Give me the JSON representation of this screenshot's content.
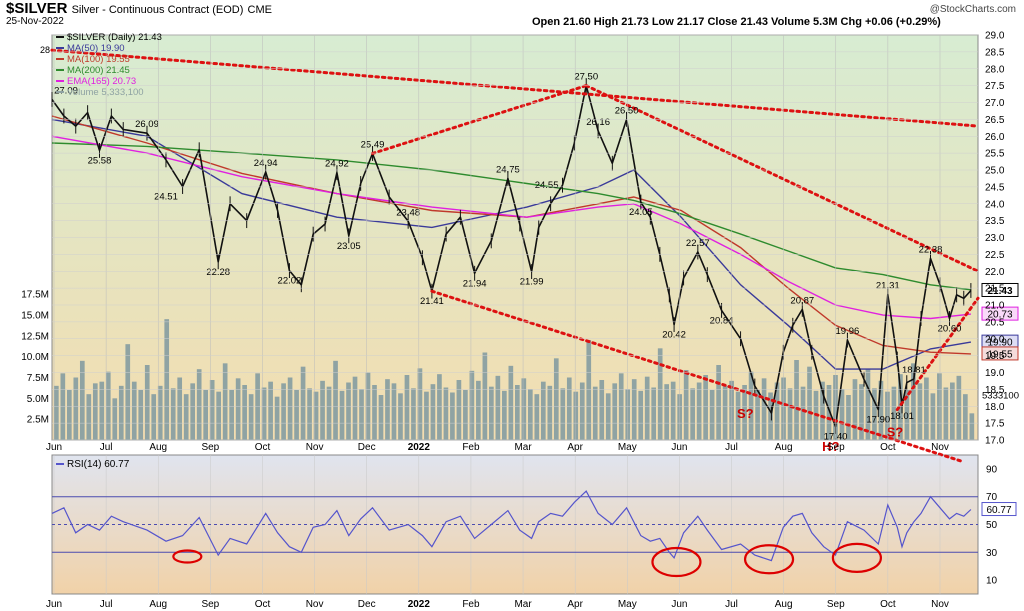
{
  "header": {
    "symbol": "$SILVER",
    "name": "Silver - Continuous Contract (EOD)",
    "exchange": "CME",
    "date": "25-Nov-2022",
    "ohlc_line": "Open 21.60  High 21.73  Low 21.17  Close 21.43  Volume 5.3M  Chg +0.06 (+0.29%)",
    "credit": "@StockCharts.com"
  },
  "legend": {
    "price": "$SILVER (Daily) 21.43",
    "ma50": "MA(50) 19.90",
    "ma100": "MA(100) 19.55",
    "ma200": "MA(200) 21.45",
    "ema165": "EMA(165) 20.73",
    "volume": "Volume 5,333,100",
    "rsi": "RSI(14) 60.77"
  },
  "colors": {
    "panel_bg_top": "#d7ecd2",
    "panel_bg_bottom": "#f3ddb0",
    "rsi_bg_top": "#e0e4ef",
    "rsi_bg_bottom": "#f1d2a8",
    "price": "#111111",
    "ma50": "#3a3a9a",
    "ma100": "#c0392b",
    "ma200": "#2e8b2e",
    "ema165": "#e020e0",
    "volume": "#8fa3a3",
    "trendline": "#dd1111",
    "rsi": "#5555cc",
    "annotation": "#cc0000"
  },
  "chart_data": {
    "type": "line",
    "title": "$SILVER Silver - Continuous Contract (EOD)",
    "price_axis": {
      "min": 17.0,
      "max": 29.0,
      "ticks": [
        "29.0",
        "28.5",
        "28.0",
        "27.5",
        "27.0",
        "26.5",
        "26.0",
        "25.5",
        "25.0",
        "24.5",
        "24.0",
        "23.5",
        "23.0",
        "22.5",
        "22.0",
        "21.5",
        "21.0",
        "20.5",
        "20.0",
        "19.5",
        "19.0",
        "18.5",
        "18.0",
        "17.5",
        "17.0"
      ]
    },
    "volume_axis": {
      "min": 0,
      "max": 17500000,
      "ticks": [
        "17.5M",
        "15.0M",
        "12.5M",
        "10.0M",
        "7.5M",
        "5.0M",
        "2.5M"
      ],
      "tick_values": [
        17.5,
        15,
        12.5,
        10,
        7.5,
        5,
        2.5
      ]
    },
    "rsi_axis": {
      "min": 0,
      "max": 100,
      "ticks": [
        90,
        70,
        50,
        30,
        10
      ],
      "reference_lines": [
        70,
        50,
        30
      ]
    },
    "x_labels": [
      "Jun",
      "Jul",
      "Aug",
      "Sep",
      "Oct",
      "Nov",
      "Dec",
      "2022",
      "Feb",
      "Mar",
      "Apr",
      "May",
      "Jun",
      "Jul",
      "Aug",
      "Sep",
      "Oct",
      "Nov"
    ],
    "x_bold": [
      false,
      false,
      false,
      false,
      false,
      false,
      false,
      true,
      false,
      false,
      false,
      false,
      false,
      false,
      false,
      false,
      false,
      false
    ],
    "price_series": {
      "name": "$SILVER (Daily)",
      "x": [
        0,
        5,
        10,
        15,
        20,
        25,
        30,
        40,
        48,
        55,
        62,
        70,
        75,
        82,
        90,
        95,
        100,
        105,
        110,
        115,
        120,
        125,
        130,
        135,
        142,
        150,
        156,
        160,
        166,
        172,
        178,
        185,
        192,
        197,
        202,
        205,
        210,
        215,
        220,
        225,
        230,
        236,
        242,
        248,
        252,
        256,
        260,
        262,
        266,
        272,
        276,
        282,
        290,
        296,
        303,
        308,
        312,
        316,
        320,
        325,
        330,
        335,
        342,
        348,
        352,
        356,
        358,
        360,
        363,
        366,
        370,
        374,
        378,
        381,
        384,
        387
      ],
      "y": [
        27.09,
        26.6,
        26.3,
        26.7,
        25.58,
        26.6,
        26.2,
        26.09,
        25.3,
        24.51,
        25.6,
        22.28,
        24.0,
        23.5,
        24.94,
        23.8,
        22.02,
        21.6,
        23.1,
        23.4,
        24.92,
        23.05,
        24.6,
        25.49,
        24.2,
        23.48,
        22.4,
        21.41,
        23.1,
        23.6,
        21.94,
        22.9,
        24.75,
        23.4,
        21.99,
        23.3,
        24.0,
        24.55,
        25.8,
        27.5,
        26.16,
        25.2,
        26.5,
        24.05,
        23.6,
        22.5,
        21.3,
        20.42,
        21.8,
        22.57,
        21.9,
        20.84,
        20.0,
        18.6,
        17.8,
        19.6,
        20.4,
        20.87,
        19.6,
        18.3,
        17.4,
        19.96,
        18.8,
        17.9,
        21.31,
        19.4,
        18.01,
        18.7,
        18.81,
        20.6,
        22.38,
        21.6,
        20.6,
        21.3,
        21.2,
        21.43
      ]
    },
    "ma_series": [
      {
        "name": "MA(50)",
        "color_key": "ma50",
        "x": [
          0,
          40,
          80,
          120,
          160,
          200,
          230,
          245,
          265,
          290,
          310,
          330,
          350,
          370,
          387
        ],
        "y": [
          26.5,
          26.0,
          24.3,
          23.6,
          23.3,
          23.9,
          24.5,
          25.0,
          23.6,
          21.6,
          20.4,
          19.1,
          19.1,
          19.7,
          19.9
        ]
      },
      {
        "name": "MA(100)",
        "color_key": "ma100",
        "x": [
          0,
          40,
          80,
          120,
          160,
          200,
          230,
          245,
          265,
          290,
          310,
          330,
          350,
          370,
          387
        ],
        "y": [
          26.6,
          25.8,
          24.9,
          24.3,
          23.8,
          23.6,
          24.0,
          24.2,
          23.8,
          22.7,
          21.5,
          20.4,
          19.8,
          19.6,
          19.55
        ]
      },
      {
        "name": "MA(200)",
        "color_key": "ma200",
        "x": [
          0,
          40,
          80,
          120,
          160,
          200,
          230,
          245,
          265,
          290,
          310,
          330,
          350,
          370,
          387
        ],
        "y": [
          25.8,
          25.7,
          25.5,
          25.3,
          25.0,
          24.6,
          24.3,
          24.1,
          23.7,
          23.1,
          22.6,
          22.1,
          21.9,
          21.6,
          21.45
        ]
      },
      {
        "name": "EMA(165)",
        "color_key": "ema165",
        "x": [
          0,
          40,
          80,
          120,
          160,
          200,
          230,
          245,
          265,
          290,
          310,
          330,
          350,
          370,
          387
        ],
        "y": [
          26.0,
          25.5,
          24.8,
          24.3,
          23.9,
          23.6,
          23.9,
          24.0,
          23.4,
          22.5,
          21.7,
          21.0,
          20.7,
          20.6,
          20.73
        ]
      }
    ],
    "volume_series": {
      "name": "Volume",
      "values": [
        6.5,
        8.0,
        6.0,
        7.5,
        9.5,
        5.5,
        6.8,
        7.0,
        8.2,
        5.0,
        6.5,
        11.5,
        7.0,
        6.0,
        9.0,
        5.5,
        6.5,
        14.5,
        6.2,
        7.5,
        5.5,
        6.8,
        8.5,
        6.0,
        7.2,
        5.8,
        9.2,
        6.0,
        7.4,
        6.6,
        5.5,
        8.0,
        6.3,
        7.0,
        5.2,
        6.8,
        7.5,
        6.0,
        8.8,
        6.2,
        5.8,
        7.1,
        6.4,
        9.5,
        5.9,
        6.9,
        7.6,
        6.1,
        8.1,
        6.6,
        5.4,
        7.3,
        6.8,
        5.6,
        7.8,
        6.2,
        8.6,
        5.8,
        6.7,
        7.9,
        6.3,
        5.7,
        7.2,
        6.0,
        8.3,
        7.1,
        10.5,
        6.4,
        7.7,
        5.9,
        8.9,
        6.6,
        7.4,
        6.1,
        5.5,
        7.0,
        6.5,
        9.8,
        6.2,
        7.5,
        5.8,
        6.9,
        12.0,
        6.4,
        7.2,
        5.6,
        6.8,
        8.0,
        6.1,
        7.3,
        5.9,
        7.6,
        6.3,
        11.0,
        6.7,
        7.0,
        5.5,
        8.4,
        6.2,
        6.9,
        7.8,
        6.0,
        9.0,
        6.5,
        7.1,
        5.8,
        6.6,
        8.2,
        6.0,
        7.4,
        5.7,
        6.9,
        7.5,
        6.2,
        9.6,
        6.4,
        8.8,
        5.9,
        7.0,
        6.6,
        7.8,
        6.1,
        5.4,
        7.3,
        6.7,
        8.5,
        6.2,
        7.1,
        5.8,
        6.4,
        7.9,
        6.0,
        9.2,
        6.8,
        7.5,
        5.6,
        8.0,
        6.3,
        6.9,
        7.7,
        5.5,
        3.2
      ]
    },
    "rsi_series": {
      "name": "RSI(14)",
      "x": [
        0,
        5,
        10,
        15,
        20,
        25,
        30,
        40,
        48,
        55,
        62,
        70,
        75,
        82,
        90,
        95,
        100,
        105,
        110,
        115,
        120,
        125,
        130,
        135,
        142,
        150,
        156,
        160,
        166,
        172,
        178,
        185,
        192,
        197,
        202,
        205,
        210,
        215,
        220,
        225,
        230,
        236,
        242,
        248,
        252,
        256,
        260,
        262,
        266,
        272,
        276,
        282,
        290,
        296,
        303,
        308,
        312,
        316,
        320,
        325,
        330,
        335,
        342,
        348,
        352,
        356,
        358,
        360,
        363,
        366,
        370,
        374,
        378,
        381,
        384,
        387
      ],
      "y": [
        58,
        62,
        44,
        50,
        46,
        56,
        52,
        46,
        38,
        42,
        55,
        28,
        40,
        36,
        58,
        44,
        34,
        30,
        48,
        50,
        60,
        42,
        54,
        62,
        46,
        50,
        42,
        34,
        52,
        56,
        40,
        50,
        60,
        46,
        40,
        52,
        58,
        56,
        66,
        74,
        58,
        50,
        62,
        42,
        38,
        40,
        30,
        26,
        44,
        56,
        46,
        32,
        36,
        28,
        24,
        48,
        56,
        58,
        44,
        34,
        28,
        52,
        46,
        36,
        64,
        48,
        34,
        44,
        52,
        58,
        70,
        62,
        54,
        58,
        56,
        60.77
      ]
    },
    "trendlines": [
      {
        "from": [
          0,
          28.55
        ],
        "to": [
          390,
          26.3
        ]
      },
      {
        "from": [
          135,
          25.49
        ],
        "to": [
          225,
          27.5
        ]
      },
      {
        "from": [
          225,
          27.5
        ],
        "to": [
          390,
          22.0
        ]
      },
      {
        "from": [
          160,
          21.41
        ],
        "to": [
          384,
          16.35
        ]
      },
      {
        "from": [
          356,
          17.9
        ],
        "to": [
          390,
          21.2
        ]
      }
    ],
    "rsi_circles": [
      {
        "x": 57,
        "y": 27
      },
      {
        "x": 263,
        "y": 23
      },
      {
        "x": 302,
        "y": 25
      },
      {
        "x": 339,
        "y": 26
      }
    ],
    "annotations": [
      {
        "text": "S?",
        "x": 292,
        "y": 17.65
      },
      {
        "text": "S?",
        "x": 355,
        "y": 17.1
      },
      {
        "text": "H?",
        "x": 328,
        "y": 94
      }
    ],
    "peak_labels": [
      {
        "text": "27.09",
        "x": 0,
        "y": 27.09,
        "pos": "above"
      },
      {
        "text": "25.58",
        "x": 20,
        "y": 25.58,
        "pos": "below"
      },
      {
        "text": "26.09",
        "x": 40,
        "y": 26.09,
        "pos": "above"
      },
      {
        "text": "24.51",
        "x": 48,
        "y": 24.51,
        "pos": "below"
      },
      {
        "text": "22.28",
        "x": 70,
        "y": 22.28,
        "pos": "below"
      },
      {
        "text": "24.94",
        "x": 90,
        "y": 24.94,
        "pos": "above"
      },
      {
        "text": "22.02",
        "x": 100,
        "y": 22.02,
        "pos": "below"
      },
      {
        "text": "24.92",
        "x": 120,
        "y": 24.92,
        "pos": "above"
      },
      {
        "text": "23.05",
        "x": 125,
        "y": 23.05,
        "pos": "below"
      },
      {
        "text": "25.49",
        "x": 135,
        "y": 25.49,
        "pos": "above"
      },
      {
        "text": "23.48",
        "x": 150,
        "y": 23.48,
        "pos": "above"
      },
      {
        "text": "21.41",
        "x": 160,
        "y": 21.41,
        "pos": "below"
      },
      {
        "text": "21.94",
        "x": 178,
        "y": 21.94,
        "pos": "below"
      },
      {
        "text": "24.75",
        "x": 192,
        "y": 24.75,
        "pos": "above"
      },
      {
        "text": "21.99",
        "x": 202,
        "y": 21.99,
        "pos": "below"
      },
      {
        "text": "27.50",
        "x": 225,
        "y": 27.5,
        "pos": "above"
      },
      {
        "text": "26.16",
        "x": 230,
        "y": 26.16,
        "pos": "above"
      },
      {
        "text": "24.55",
        "x": 215,
        "y": 24.55,
        "pos": "left"
      },
      {
        "text": "26.50",
        "x": 242,
        "y": 26.5,
        "pos": "above"
      },
      {
        "text": "24.05",
        "x": 248,
        "y": 24.05,
        "pos": "below"
      },
      {
        "text": "22.57",
        "x": 272,
        "y": 22.57,
        "pos": "above"
      },
      {
        "text": "20.42",
        "x": 262,
        "y": 20.42,
        "pos": "below"
      },
      {
        "text": "20.84",
        "x": 282,
        "y": 20.84,
        "pos": "below"
      },
      {
        "text": "20.87",
        "x": 316,
        "y": 20.87,
        "pos": "above"
      },
      {
        "text": "17.40",
        "x": 330,
        "y": 17.4,
        "pos": "below"
      },
      {
        "text": "19.96",
        "x": 335,
        "y": 19.96,
        "pos": "above"
      },
      {
        "text": "17.90",
        "x": 348,
        "y": 17.9,
        "pos": "below"
      },
      {
        "text": "21.31",
        "x": 352,
        "y": 21.31,
        "pos": "above"
      },
      {
        "text": "18.01",
        "x": 358,
        "y": 18.01,
        "pos": "below"
      },
      {
        "text": "18.81",
        "x": 363,
        "y": 18.81,
        "pos": "above"
      },
      {
        "text": "22.38",
        "x": 370,
        "y": 22.38,
        "pos": "above"
      },
      {
        "text": "20.60",
        "x": 378,
        "y": 20.6,
        "pos": "below"
      }
    ],
    "last_value_tags": [
      {
        "text": "21.43",
        "y": 21.43,
        "fill": "#ffffff",
        "stroke": "#000000",
        "bold": true
      },
      {
        "text": "20.73",
        "y": 20.73,
        "fill": "#f9d9f9",
        "stroke": "#e020e0",
        "bold": false
      },
      {
        "text": "19.90",
        "y": 19.9,
        "fill": "#ddddf5",
        "stroke": "#3a3a9a",
        "bold": false
      },
      {
        "text": "19.55",
        "y": 19.55,
        "fill": "#f5dcdc",
        "stroke": "#c0392b",
        "bold": false
      }
    ],
    "volume_tag": "5333100",
    "rsi_tag": "60.77",
    "left_edge_label": "28"
  }
}
